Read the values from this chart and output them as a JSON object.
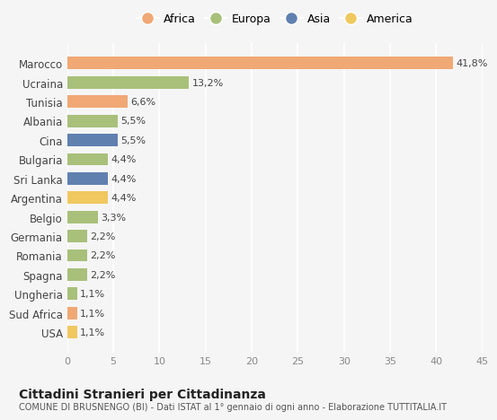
{
  "categories": [
    "Marocco",
    "Ucraina",
    "Tunisia",
    "Albania",
    "Cina",
    "Bulgaria",
    "Sri Lanka",
    "Argentina",
    "Belgio",
    "Germania",
    "Romania",
    "Spagna",
    "Ungheria",
    "Sud Africa",
    "USA"
  ],
  "values": [
    41.8,
    13.2,
    6.6,
    5.5,
    5.5,
    4.4,
    4.4,
    4.4,
    3.3,
    2.2,
    2.2,
    2.2,
    1.1,
    1.1,
    1.1
  ],
  "labels": [
    "41,8%",
    "13,2%",
    "6,6%",
    "5,5%",
    "5,5%",
    "4,4%",
    "4,4%",
    "4,4%",
    "3,3%",
    "2,2%",
    "2,2%",
    "2,2%",
    "1,1%",
    "1,1%",
    "1,1%"
  ],
  "colors": [
    "#F0A875",
    "#A8C07A",
    "#F0A875",
    "#A8C07A",
    "#6080B0",
    "#A8C07A",
    "#6080B0",
    "#F0C860",
    "#A8C07A",
    "#A8C07A",
    "#A8C07A",
    "#A8C07A",
    "#A8C07A",
    "#F0A875",
    "#F0C860"
  ],
  "legend_labels": [
    "Africa",
    "Europa",
    "Asia",
    "America"
  ],
  "legend_colors": [
    "#F0A875",
    "#A8C07A",
    "#6080B0",
    "#F0C860"
  ],
  "xlim": [
    0,
    45
  ],
  "xticks": [
    0,
    5,
    10,
    15,
    20,
    25,
    30,
    35,
    40,
    45
  ],
  "title": "Cittadini Stranieri per Cittadinanza",
  "subtitle": "COMUNE DI BRUSNENGO (BI) - Dati ISTAT al 1° gennaio di ogni anno - Elaborazione TUTTITALIA.IT",
  "bg_color": "#f5f5f5",
  "bar_height": 0.65
}
